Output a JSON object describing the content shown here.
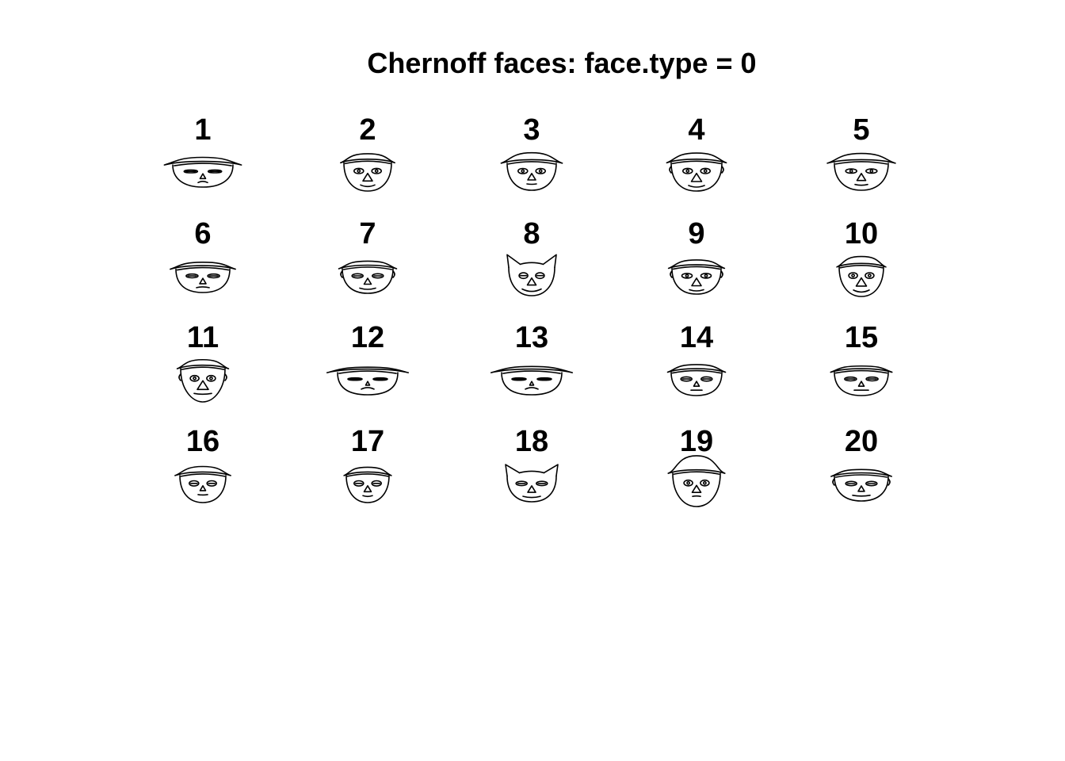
{
  "chart_data": {
    "type": "chernoff",
    "title": "Chernoff faces: face.type = 0",
    "faces": [
      {
        "label": "1",
        "features": {
          "hat": 0.8,
          "head_h": 0.2,
          "head_w": 0.9,
          "hat_h": 0.2,
          "eyes": 0.9,
          "pupils": 0.0,
          "nose": 0.3,
          "mouth": 0.3,
          "smile": 0.1,
          "ears": 0.0,
          "jaw": 0.5
        }
      },
      {
        "label": "2",
        "features": {
          "hat": 0.4,
          "head_h": 0.45,
          "head_w": 0.5,
          "hat_h": 0.3,
          "eyes": 0.4,
          "pupils": 0.8,
          "nose": 0.8,
          "mouth": 0.6,
          "smile": 0.8,
          "ears": 0.0,
          "jaw": 0.4
        }
      },
      {
        "label": "3",
        "features": {
          "hat": 0.7,
          "head_h": 0.4,
          "head_w": 0.55,
          "hat_h": 0.4,
          "eyes": 0.4,
          "pupils": 0.6,
          "nose": 0.6,
          "mouth": 0.3,
          "smile": 0.5,
          "ears": 0.0,
          "jaw": 0.4
        }
      },
      {
        "label": "4",
        "features": {
          "hat": 0.5,
          "head_h": 0.45,
          "head_w": 0.6,
          "hat_h": 0.35,
          "eyes": 0.4,
          "pupils": 0.8,
          "nose": 0.9,
          "mouth": 0.7,
          "smile": 0.8,
          "ears": 0.3,
          "jaw": 0.5
        }
      },
      {
        "label": "5",
        "features": {
          "hat": 0.75,
          "head_h": 0.4,
          "head_w": 0.7,
          "hat_h": 0.35,
          "eyes": 0.6,
          "pupils": 0.6,
          "nose": 0.7,
          "mouth": 0.5,
          "smile": 0.6,
          "ears": 0.0,
          "jaw": 0.4
        }
      },
      {
        "label": "6",
        "features": {
          "hat": 0.6,
          "head_h": 0.25,
          "head_w": 0.7,
          "hat_h": 0.15,
          "eyes": 0.7,
          "pupils": 0.0,
          "nose": 0.4,
          "mouth": 0.5,
          "smile": 0.2,
          "ears": 0.0,
          "jaw": 0.6
        }
      },
      {
        "label": "7",
        "features": {
          "hat": 0.4,
          "head_h": 0.3,
          "head_w": 0.6,
          "hat_h": 0.2,
          "eyes": 0.6,
          "pupils": 0.2,
          "nose": 0.5,
          "mouth": 0.7,
          "smile": 0.7,
          "ears": 0.2,
          "jaw": 0.5
        }
      },
      {
        "label": "8",
        "features": {
          "hat": 0.0,
          "head_h": 0.45,
          "head_w": 0.45,
          "hat_h": 0.5,
          "eyes": 0.3,
          "pupils": 0.3,
          "nose": 0.7,
          "mouth": 0.9,
          "smile": 1.0,
          "ears": 1.0,
          "jaw": 0.3
        }
      },
      {
        "label": "9",
        "features": {
          "hat": 0.4,
          "head_h": 0.35,
          "head_w": 0.55,
          "hat_h": 0.25,
          "eyes": 0.5,
          "pupils": 0.7,
          "nose": 0.8,
          "mouth": 0.6,
          "smile": 0.7,
          "ears": 0.2,
          "jaw": 0.5
        }
      },
      {
        "label": "10",
        "features": {
          "hat": 0.3,
          "head_h": 0.5,
          "head_w": 0.4,
          "hat_h": 0.4,
          "eyes": 0.3,
          "pupils": 0.9,
          "nose": 0.9,
          "mouth": 0.7,
          "smile": 0.9,
          "ears": 0.1,
          "jaw": 0.3
        }
      },
      {
        "label": "11",
        "features": {
          "hat": 0.45,
          "head_h": 0.65,
          "head_w": 0.4,
          "hat_h": 0.3,
          "eyes": 0.3,
          "pupils": 1.0,
          "nose": 1.0,
          "mouth": 0.8,
          "smile": 0.6,
          "ears": 0.3,
          "jaw": 0.0
        }
      },
      {
        "label": "12",
        "features": {
          "hat": 1.0,
          "head_h": 0.2,
          "head_w": 0.9,
          "hat_h": 0.05,
          "eyes": 1.0,
          "pupils": 0.0,
          "nose": 0.1,
          "mouth": 0.5,
          "smile": 0.0,
          "ears": 0.0,
          "jaw": 0.7
        }
      },
      {
        "label": "13",
        "features": {
          "hat": 1.0,
          "head_h": 0.2,
          "head_w": 0.9,
          "hat_h": 0.1,
          "eyes": 1.0,
          "pupils": 0.0,
          "nose": 0.1,
          "mouth": 0.5,
          "smile": 0.0,
          "ears": 0.0,
          "jaw": 0.7
        }
      },
      {
        "label": "14",
        "features": {
          "hat": 0.4,
          "head_h": 0.25,
          "head_w": 0.6,
          "hat_h": 0.2,
          "eyes": 0.6,
          "pupils": 0.1,
          "nose": 0.3,
          "mouth": 0.4,
          "smile": 0.4,
          "ears": 0.1,
          "jaw": 0.6
        }
      },
      {
        "label": "15",
        "features": {
          "hat": 0.4,
          "head_h": 0.25,
          "head_w": 0.7,
          "hat_h": 0.1,
          "eyes": 0.7,
          "pupils": 0.1,
          "nose": 0.3,
          "mouth": 0.6,
          "smile": 0.4,
          "ears": 0.1,
          "jaw": 0.6
        }
      },
      {
        "label": "16",
        "features": {
          "hat": 0.6,
          "head_h": 0.4,
          "head_w": 0.45,
          "hat_h": 0.3,
          "eyes": 0.4,
          "pupils": 0.3,
          "nose": 0.3,
          "mouth": 0.3,
          "smile": 0.5,
          "ears": 0.0,
          "jaw": 0.4
        }
      },
      {
        "label": "17",
        "features": {
          "hat": 0.3,
          "head_h": 0.4,
          "head_w": 0.35,
          "hat_h": 0.25,
          "eyes": 0.4,
          "pupils": 0.2,
          "nose": 0.5,
          "mouth": 0.3,
          "smile": 0.6,
          "ears": 0.0,
          "jaw": 0.3
        }
      },
      {
        "label": "18",
        "features": {
          "hat": 0.0,
          "head_h": 0.35,
          "head_w": 0.55,
          "hat_h": 0.4,
          "eyes": 0.6,
          "pupils": 0.2,
          "nose": 0.6,
          "mouth": 0.8,
          "smile": 0.7,
          "ears": 0.9,
          "jaw": 0.5
        }
      },
      {
        "label": "19",
        "features": {
          "hat": 0.55,
          "head_h": 0.65,
          "head_w": 0.5,
          "hat_h": 0.9,
          "eyes": 0.3,
          "pupils": 0.9,
          "nose": 0.7,
          "mouth": 0.2,
          "smile": 0.3,
          "ears": 0.0,
          "jaw": 0.2
        }
      },
      {
        "label": "20",
        "features": {
          "hat": 0.35,
          "head_h": 0.3,
          "head_w": 0.7,
          "hat_h": 0.15,
          "eyes": 0.6,
          "pupils": 0.1,
          "nose": 0.4,
          "mouth": 0.8,
          "smile": 0.6,
          "ears": 0.2,
          "jaw": 0.5
        }
      }
    ]
  }
}
